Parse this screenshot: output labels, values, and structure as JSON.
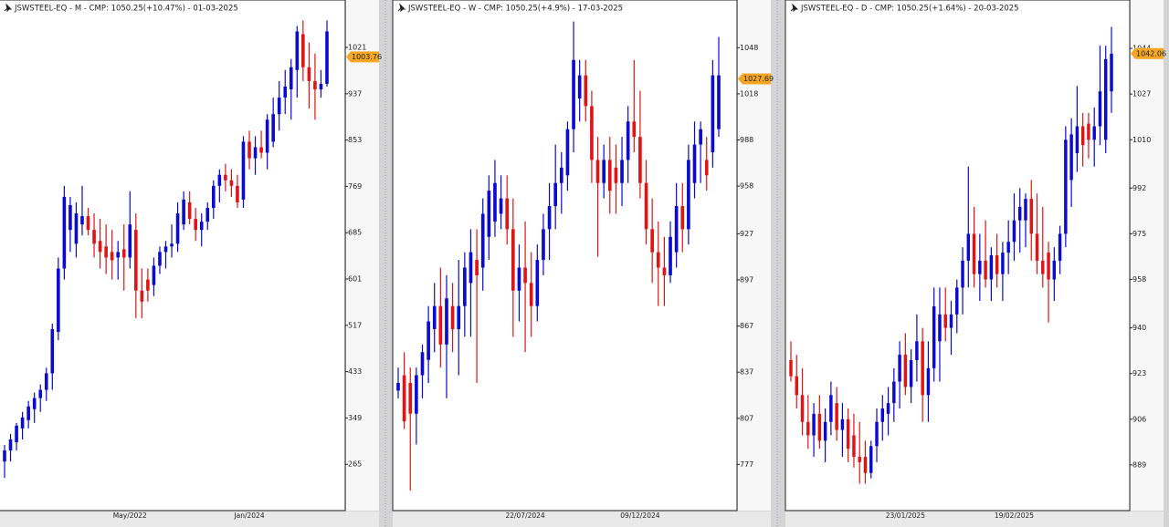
{
  "chart_data": [
    {
      "type": "candlestick",
      "title": "JSWSTEEL-EQ - M - CMP: 1050.25(+10.47%) - 01-03-2025",
      "categories": [
        null,
        null,
        null,
        null,
        null,
        null,
        null,
        null,
        null,
        null,
        null,
        null,
        null,
        null,
        null,
        null,
        null,
        null,
        null,
        null,
        null,
        "May/2022",
        null,
        null,
        null,
        null,
        null,
        null,
        null,
        null,
        null,
        null,
        null,
        null,
        null,
        null,
        null,
        null,
        null,
        null,
        null,
        "Jan/2024",
        null,
        null,
        null,
        null,
        null,
        null,
        null,
        null,
        null,
        null,
        null,
        null,
        null
      ],
      "open": [
        270,
        290,
        305,
        330,
        345,
        365,
        385,
        400,
        430,
        505,
        620,
        690,
        665,
        700,
        715,
        690,
        670,
        660,
        650,
        640,
        655,
        640,
        690,
        580,
        600,
        590,
        625,
        650,
        660,
        665,
        700,
        740,
        710,
        690,
        705,
        730,
        770,
        790,
        780,
        770,
        745,
        850,
        820,
        840,
        830,
        850,
        900,
        930,
        945,
        980,
        1045,
        985,
        960,
        945,
        955
      ],
      "high": [
        300,
        320,
        340,
        360,
        380,
        395,
        410,
        440,
        520,
        640,
        770,
        750,
        740,
        770,
        730,
        720,
        710,
        700,
        690,
        670,
        700,
        760,
        720,
        620,
        620,
        640,
        660,
        670,
        700,
        740,
        760,
        760,
        730,
        720,
        740,
        780,
        800,
        810,
        800,
        790,
        860,
        870,
        860,
        870,
        900,
        930,
        960,
        980,
        1000,
        1060,
        1070,
        1030,
        1010,
        980,
        1070
      ],
      "low": [
        240,
        270,
        290,
        310,
        330,
        340,
        360,
        380,
        400,
        490,
        600,
        650,
        640,
        680,
        680,
        640,
        620,
        610,
        600,
        600,
        580,
        620,
        530,
        530,
        560,
        570,
        610,
        620,
        640,
        650,
        690,
        700,
        670,
        660,
        690,
        710,
        740,
        760,
        750,
        730,
        730,
        800,
        790,
        820,
        800,
        840,
        870,
        900,
        890,
        930,
        960,
        910,
        890,
        930,
        950
      ],
      "close": [
        290,
        310,
        335,
        350,
        370,
        385,
        400,
        430,
        510,
        620,
        750,
        735,
        720,
        715,
        690,
        665,
        650,
        640,
        635,
        650,
        640,
        700,
        580,
        560,
        580,
        625,
        650,
        660,
        665,
        720,
        745,
        710,
        690,
        705,
        730,
        770,
        790,
        780,
        770,
        740,
        850,
        820,
        840,
        830,
        890,
        900,
        930,
        950,
        985,
        1050,
        985,
        960,
        945,
        955,
        1050
      ],
      "up_color": "#0a0ad0",
      "down_color": "#e01414",
      "ylim": [
        181,
        1107
      ],
      "yticks": [
        265,
        349,
        433,
        517,
        601,
        685,
        769,
        853,
        937,
        1021
      ],
      "price_tag": 1003.76
    },
    {
      "type": "candlestick",
      "title": "JSWSTEEL-EQ - W - CMP: 1050.25(+4.9%) - 17-03-2025",
      "categories": [
        null,
        null,
        null,
        null,
        null,
        null,
        null,
        null,
        null,
        null,
        null,
        null,
        null,
        null,
        null,
        null,
        null,
        null,
        null,
        null,
        null,
        "22/07/2024",
        null,
        null,
        null,
        null,
        null,
        null,
        null,
        null,
        null,
        null,
        null,
        null,
        null,
        null,
        null,
        null,
        null,
        null,
        "09/12/2024",
        null,
        null,
        null,
        null,
        null,
        null,
        null,
        null,
        null,
        null,
        null,
        null,
        null
      ],
      "open": [
        825,
        835,
        830,
        810,
        835,
        845,
        865,
        880,
        855,
        880,
        865,
        880,
        895,
        910,
        905,
        925,
        935,
        940,
        950,
        930,
        890,
        905,
        895,
        880,
        910,
        930,
        945,
        960,
        965,
        995,
        1015,
        1030,
        1010,
        975,
        960,
        975,
        970,
        960,
        975,
        1000,
        990,
        960,
        930,
        915,
        905,
        900,
        915,
        945,
        930,
        960,
        985,
        975,
        980,
        995
      ],
      "high": [
        840,
        850,
        840,
        840,
        855,
        880,
        895,
        905,
        900,
        895,
        910,
        915,
        930,
        930,
        950,
        965,
        975,
        965,
        965,
        950,
        920,
        935,
        915,
        920,
        940,
        960,
        985,
        980,
        1000,
        1065,
        1040,
        1040,
        1020,
        990,
        985,
        990,
        985,
        990,
        1010,
        1040,
        1020,
        975,
        950,
        935,
        925,
        935,
        960,
        960,
        985,
        1000,
        1000,
        990,
        1040,
        1055
      ],
      "low": [
        820,
        800,
        760,
        790,
        820,
        830,
        850,
        840,
        820,
        850,
        835,
        860,
        860,
        830,
        890,
        910,
        925,
        930,
        920,
        860,
        870,
        850,
        860,
        870,
        900,
        910,
        930,
        940,
        955,
        980,
        1000,
        1000,
        960,
        912,
        950,
        940,
        940,
        945,
        960,
        980,
        950,
        920,
        895,
        880,
        880,
        895,
        905,
        915,
        920,
        950,
        960,
        955,
        970,
        990
      ],
      "close": [
        830,
        805,
        810,
        835,
        850,
        870,
        880,
        855,
        885,
        865,
        880,
        905,
        915,
        900,
        940,
        955,
        960,
        950,
        930,
        890,
        905,
        895,
        880,
        910,
        930,
        945,
        960,
        970,
        995,
        1040,
        1030,
        1010,
        975,
        960,
        975,
        955,
        960,
        975,
        1000,
        990,
        960,
        930,
        915,
        905,
        900,
        925,
        945,
        930,
        975,
        985,
        995,
        965,
        1030,
        1030
      ],
      "up_color": "#0a0ad0",
      "down_color": "#e01414",
      "ylim": [
        747,
        1079
      ],
      "yticks": [
        777,
        807,
        837,
        867,
        897,
        927,
        958,
        988,
        1018,
        1048
      ],
      "price_tag": 1027.69
    },
    {
      "type": "candlestick",
      "title": "JSWSTEEL-EQ - D - CMP: 1050.25(+1.64%) - 20-03-2025",
      "categories": [
        null,
        null,
        null,
        null,
        null,
        null,
        null,
        null,
        null,
        null,
        null,
        null,
        null,
        null,
        null,
        null,
        null,
        null,
        null,
        null,
        "23/01/2025",
        null,
        null,
        null,
        null,
        null,
        null,
        null,
        null,
        null,
        null,
        null,
        null,
        null,
        null,
        null,
        null,
        null,
        null,
        "19/02/2025",
        null,
        null,
        null,
        null,
        null,
        null,
        null,
        null,
        null,
        null,
        null,
        null,
        null,
        null,
        null,
        null,
        null
      ],
      "open": [
        928,
        922,
        915,
        905,
        900,
        908,
        898,
        905,
        912,
        902,
        906,
        900,
        892,
        892,
        886,
        896,
        905,
        908,
        912,
        920,
        930,
        918,
        928,
        935,
        915,
        925,
        935,
        945,
        940,
        945,
        955,
        965,
        975,
        960,
        965,
        958,
        967,
        960,
        968,
        972,
        980,
        980,
        988,
        975,
        965,
        968,
        958,
        965,
        975,
        995,
        1005,
        1015,
        1016,
        1010,
        1015,
        1010,
        1028
      ],
      "high": [
        935,
        930,
        925,
        915,
        912,
        915,
        910,
        920,
        918,
        912,
        910,
        908,
        905,
        898,
        898,
        910,
        915,
        918,
        925,
        935,
        938,
        932,
        945,
        940,
        935,
        955,
        955,
        955,
        950,
        958,
        970,
        1000,
        985,
        975,
        980,
        970,
        975,
        972,
        980,
        990,
        992,
        990,
        995,
        990,
        985,
        972,
        970,
        978,
        1015,
        1018,
        1030,
        1020,
        1020,
        1022,
        1045,
        1045,
        1052
      ],
      "low": [
        920,
        910,
        900,
        895,
        892,
        895,
        890,
        900,
        898,
        892,
        890,
        888,
        882,
        882,
        884,
        890,
        898,
        900,
        905,
        910,
        915,
        912,
        920,
        905,
        905,
        920,
        920,
        935,
        930,
        938,
        945,
        955,
        955,
        950,
        955,
        950,
        955,
        950,
        960,
        965,
        968,
        970,
        965,
        960,
        955,
        942,
        950,
        960,
        970,
        985,
        998,
        1000,
        1003,
        1000,
        1008,
        1005,
        1020
      ],
      "close": [
        922,
        915,
        905,
        900,
        908,
        898,
        905,
        915,
        902,
        906,
        895,
        892,
        890,
        886,
        896,
        905,
        910,
        912,
        920,
        930,
        918,
        928,
        935,
        915,
        925,
        948,
        945,
        940,
        945,
        955,
        965,
        975,
        960,
        965,
        958,
        967,
        960,
        968,
        972,
        980,
        985,
        988,
        975,
        965,
        960,
        958,
        965,
        975,
        1010,
        1012,
        1015,
        1008,
        1010,
        1015,
        1028,
        1040,
        1042
      ],
      "up_color": "#0a0ad0",
      "down_color": "#e01414",
      "ylim": [
        872,
        1062
      ],
      "yticks": [
        889,
        906,
        923,
        940,
        958,
        975,
        992,
        1010,
        1027,
        1044
      ],
      "price_tag": 1042.06
    }
  ]
}
